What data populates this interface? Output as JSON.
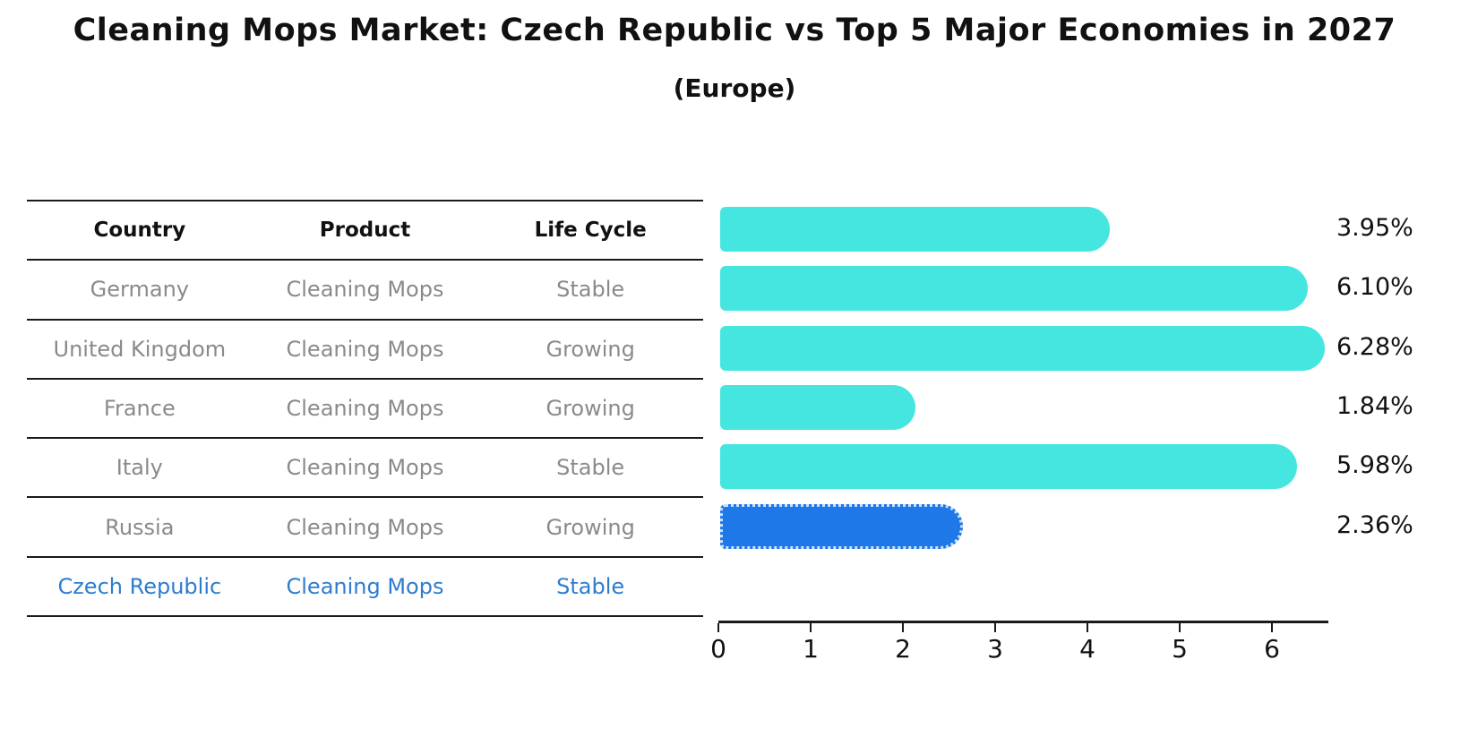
{
  "title": "Cleaning Mops Market: Czech Republic vs Top 5 Major Economies in 2027",
  "subtitle": "(Europe)",
  "table": {
    "headers": {
      "country": "Country",
      "product": "Product",
      "life_cycle": "Life Cycle"
    },
    "rows": [
      {
        "country": "Germany",
        "product": "Cleaning Mops",
        "life_cycle": "Stable",
        "share": "3.95%"
      },
      {
        "country": "United Kingdom",
        "product": "Cleaning Mops",
        "life_cycle": "Growing",
        "share": "6.10%"
      },
      {
        "country": "France",
        "product": "Cleaning Mops",
        "life_cycle": "Growing",
        "share": "6.28%"
      },
      {
        "country": "Italy",
        "product": "Cleaning Mops",
        "life_cycle": "Stable",
        "share": "1.84%"
      },
      {
        "country": "Russia",
        "product": "Cleaning Mops",
        "life_cycle": "Growing",
        "share": "5.98%"
      },
      {
        "country": "Czech Republic",
        "product": "Cleaning Mops",
        "life_cycle": "Stable",
        "share": "2.36%"
      }
    ]
  },
  "chart_data": {
    "type": "bar",
    "orientation": "horizontal",
    "title": "Cleaning Mops Market: Czech Republic vs Top 5 Major Economies in 2027 (Europe)",
    "categories": [
      "Germany",
      "United Kingdom",
      "France",
      "Italy",
      "Russia",
      "Czech Republic"
    ],
    "values": [
      3.95,
      6.1,
      6.28,
      1.84,
      5.98,
      2.36
    ],
    "value_labels": [
      "3.95%",
      "6.10%",
      "6.28%",
      "1.84%",
      "5.98%",
      "2.36%"
    ],
    "x_ticks": [
      0,
      1,
      2,
      3,
      4,
      5,
      6
    ],
    "xlim": [
      0,
      6.6
    ],
    "xlabel": "",
    "ylabel": "",
    "grid": false,
    "legend": false,
    "bar_color": "#45e6e0",
    "highlight_color": "#1e78e8",
    "highlight_border_color": "rgba(255,255,255,0.78)",
    "highlight_index": 5,
    "highlight_text_color": "#2e7cd0"
  }
}
